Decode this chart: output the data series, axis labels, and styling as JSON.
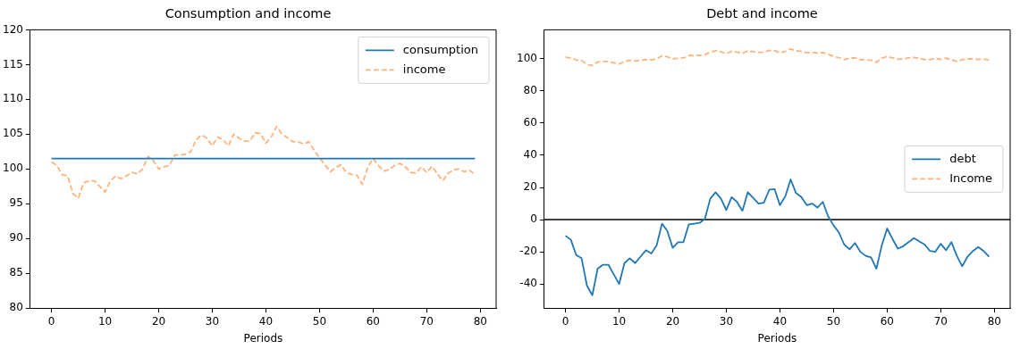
{
  "chart_data": [
    {
      "type": "line",
      "title": "Consumption and income",
      "xlabel": "Periods",
      "x": [
        0,
        1,
        2,
        3,
        4,
        5,
        6,
        7,
        8,
        9,
        10,
        11,
        12,
        13,
        14,
        15,
        16,
        17,
        18,
        19,
        20,
        21,
        22,
        23,
        24,
        25,
        26,
        27,
        28,
        29,
        30,
        31,
        32,
        33,
        34,
        35,
        36,
        37,
        38,
        39,
        40,
        41,
        42,
        43,
        44,
        45,
        46,
        47,
        48,
        49,
        50,
        51,
        52,
        53,
        54,
        55,
        56,
        57,
        58,
        59,
        60,
        61,
        62,
        63,
        64,
        65,
        66,
        67,
        68,
        69,
        70,
        71,
        72,
        73,
        74,
        75,
        76,
        77,
        78,
        79
      ],
      "xlim": [
        -3.95,
        82.95
      ],
      "xticks": [
        0,
        10,
        20,
        30,
        40,
        50,
        60,
        70,
        80
      ],
      "ylim": [
        80,
        120
      ],
      "yticks": [
        80,
        85,
        90,
        95,
        100,
        105,
        110,
        115,
        120
      ],
      "grid": false,
      "legend": "top right",
      "marker": "none",
      "series": [
        {
          "name": "consumption",
          "color": "#1f77b4",
          "line_style": "solid",
          "values": [
            101.5,
            101.5,
            101.5,
            101.5,
            101.5,
            101.5,
            101.5,
            101.5,
            101.5,
            101.5,
            101.5,
            101.5,
            101.5,
            101.5,
            101.5,
            101.5,
            101.5,
            101.5,
            101.5,
            101.5,
            101.5,
            101.5,
            101.5,
            101.5,
            101.5,
            101.5,
            101.5,
            101.5,
            101.5,
            101.5,
            101.5,
            101.5,
            101.5,
            101.5,
            101.5,
            101.5,
            101.5,
            101.5,
            101.5,
            101.5,
            101.5,
            101.5,
            101.5,
            101.5,
            101.5,
            101.5,
            101.5,
            101.5,
            101.5,
            101.5,
            101.5,
            101.5,
            101.5,
            101.5,
            101.5,
            101.5,
            101.5,
            101.5,
            101.5,
            101.5,
            101.5,
            101.5,
            101.5,
            101.5,
            101.5,
            101.5,
            101.5,
            101.5,
            101.5,
            101.5,
            101.5,
            101.5,
            101.5,
            101.5,
            101.5,
            101.5,
            101.5,
            101.5,
            101.5,
            101.5
          ]
        },
        {
          "name": "income",
          "color": "#ffb27b",
          "line_style": "dashed",
          "values": [
            101,
            100.5,
            99.2,
            99,
            96.5,
            95.8,
            98,
            98.3,
            98.3,
            97.5,
            96.7,
            98.3,
            99,
            98.6,
            99,
            99.5,
            99.3,
            100,
            101.8,
            101.2,
            100,
            100.3,
            100.5,
            102,
            102,
            102.1,
            102.5,
            104.2,
            104.9,
            104.4,
            103.3,
            104.6,
            104.2,
            103.3,
            105,
            104.4,
            104,
            104,
            105.2,
            105.1,
            103.7,
            104.6,
            106.1,
            105,
            104.5,
            103.9,
            103.9,
            103.6,
            103.9,
            102.7,
            101.6,
            100.6,
            99.6,
            100.2,
            100.6,
            99.5,
            99.2,
            99.1,
            97.8,
            100.3,
            101.5,
            100.5,
            99.7,
            99.9,
            100.5,
            100.8,
            100.3,
            99.5,
            99.4,
            100.3,
            99.5,
            100.4,
            99.3,
            98.3,
            99.4,
            99.9,
            100,
            99.6,
            99.8,
            99.2
          ]
        }
      ]
    },
    {
      "type": "line",
      "title": "Debt and income",
      "xlabel": "Periods",
      "x": [
        0,
        1,
        2,
        3,
        4,
        5,
        6,
        7,
        8,
        9,
        10,
        11,
        12,
        13,
        14,
        15,
        16,
        17,
        18,
        19,
        20,
        21,
        22,
        23,
        24,
        25,
        26,
        27,
        28,
        29,
        30,
        31,
        32,
        33,
        34,
        35,
        36,
        37,
        38,
        39,
        40,
        41,
        42,
        43,
        44,
        45,
        46,
        47,
        48,
        49,
        50,
        51,
        52,
        53,
        54,
        55,
        56,
        57,
        58,
        59,
        60,
        61,
        62,
        63,
        64,
        65,
        66,
        67,
        68,
        69,
        70,
        71,
        72,
        73,
        74,
        75,
        76,
        77,
        78,
        79
      ],
      "xlim": [
        -3.95,
        82.95
      ],
      "xticks": [
        0,
        10,
        20,
        30,
        40,
        50,
        60,
        70,
        80
      ],
      "ylim": [
        -55,
        118
      ],
      "yticks": [
        -40,
        -20,
        0,
        20,
        40,
        60,
        80,
        100
      ],
      "grid": false,
      "legend": "right",
      "marker": "none",
      "ref_lines": [
        {
          "axis": "y",
          "value": 0,
          "color": "#000000",
          "line_style": "solid"
        }
      ],
      "series": [
        {
          "name": "debt",
          "color": "#1f77b4",
          "line_style": "solid",
          "values": [
            -10,
            -12.5,
            -22,
            -24,
            -41,
            -47,
            -30.5,
            -28,
            -28,
            -34,
            -40,
            -27,
            -24,
            -27,
            -23,
            -19,
            -21,
            -16,
            -2.5,
            -7,
            -17.5,
            -14,
            -14,
            -3,
            -2.5,
            -2,
            0.5,
            13,
            17,
            13,
            6,
            14,
            11,
            5.5,
            17,
            13.5,
            10,
            10.5,
            18.5,
            19,
            9,
            14.5,
            25,
            16.5,
            14,
            9,
            10,
            7.5,
            11,
            2,
            -3.5,
            -8,
            -15.5,
            -18.5,
            -14.5,
            -20,
            -22.5,
            -23.5,
            -30.5,
            -16,
            -5.5,
            -12,
            -18,
            -16.5,
            -14,
            -11.5,
            -13.5,
            -15.5,
            -19.5,
            -20,
            -15,
            -19,
            -14,
            -22.5,
            -29,
            -23,
            -19.5,
            -17,
            -19.5,
            -23
          ]
        },
        {
          "name": "Income",
          "color": "#ffb27b",
          "line_style": "dashed",
          "values": [
            101,
            100.5,
            99.2,
            99,
            96.5,
            95.8,
            98,
            98.3,
            98.3,
            97.5,
            96.7,
            98.3,
            99,
            98.6,
            99,
            99.5,
            99.3,
            100,
            101.8,
            101.2,
            100,
            100.3,
            100.5,
            102,
            102,
            102.1,
            102.5,
            104.2,
            104.9,
            104.4,
            103.3,
            104.6,
            104.2,
            103.3,
            105,
            104.4,
            104,
            104,
            105.2,
            105.1,
            103.7,
            104.6,
            106.1,
            105,
            104.5,
            103.9,
            103.9,
            103.6,
            103.9,
            102.7,
            101.6,
            100.6,
            99.6,
            100.2,
            100.6,
            99.5,
            99.2,
            99.1,
            97.8,
            100.3,
            101.5,
            100.5,
            99.7,
            99.9,
            100.5,
            100.8,
            100.3,
            99.5,
            99.4,
            100.3,
            99.5,
            100.4,
            99.3,
            98.3,
            99.4,
            99.9,
            100,
            99.6,
            99.8,
            99.2
          ]
        }
      ]
    }
  ]
}
